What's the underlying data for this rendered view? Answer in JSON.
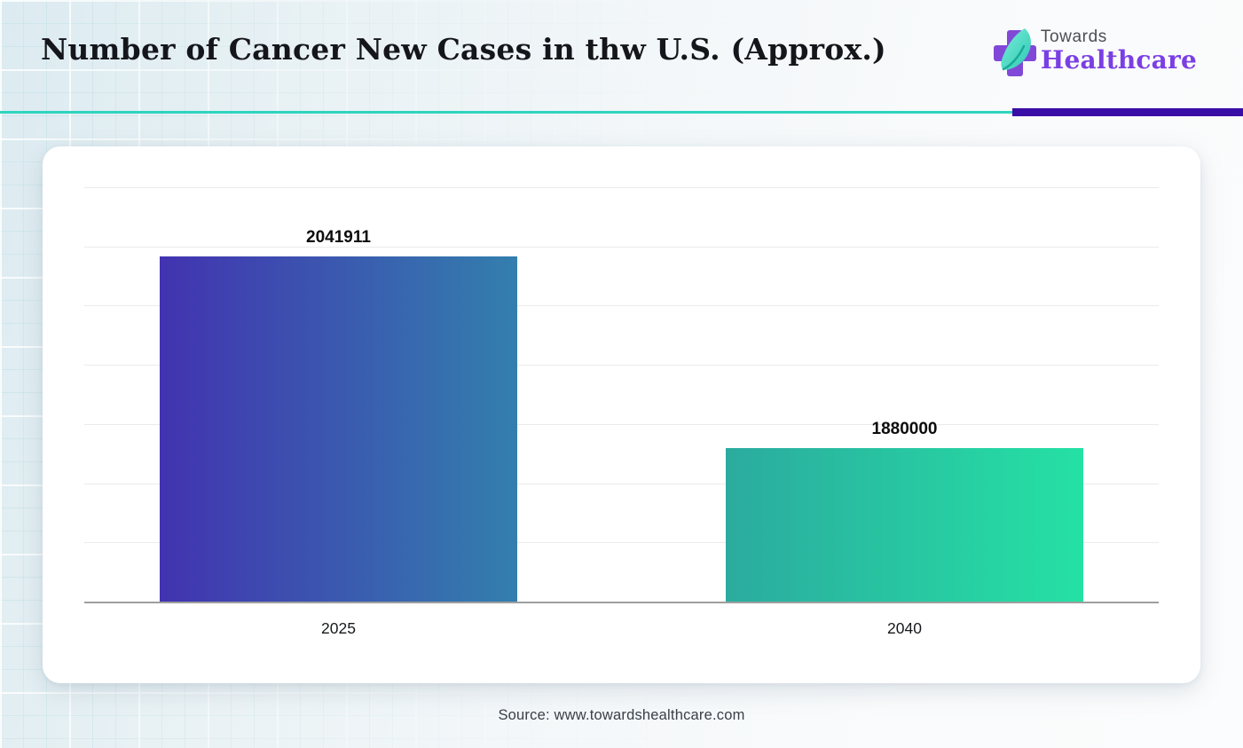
{
  "header": {
    "title": "Number of Cancer New Cases in thw U.S. (Approx.)",
    "logo": {
      "line1": "Towards",
      "line2": "Healthcare"
    },
    "accent_teal": "#2fd4bf",
    "accent_indigo": "#3a0da6",
    "logo_purple": "#8148d8",
    "logo_leaf_light": "#7ceed8",
    "logo_leaf_dark": "#2cc9b4"
  },
  "chart_data": {
    "type": "bar",
    "title": "Number of Cancer New Cases in thw U.S. (Approx.)",
    "categories": [
      "2025",
      "2040"
    ],
    "values": [
      2041911,
      1880000
    ],
    "xlabel": "",
    "ylabel": "",
    "ylim": [
      1750000,
      2100000
    ],
    "gridline_step": 50000,
    "grid": true,
    "legend": false,
    "value_labels_shown": true,
    "bar_gradients": [
      [
        "#4233b0",
        "#337fae"
      ],
      [
        "#2bab9f",
        "#25e1a4"
      ]
    ],
    "gridline_color": "#ebebeb",
    "axis_line_color": "#9e9e9e"
  },
  "footer": {
    "source": "Source: www.towardshealthcare.com"
  }
}
